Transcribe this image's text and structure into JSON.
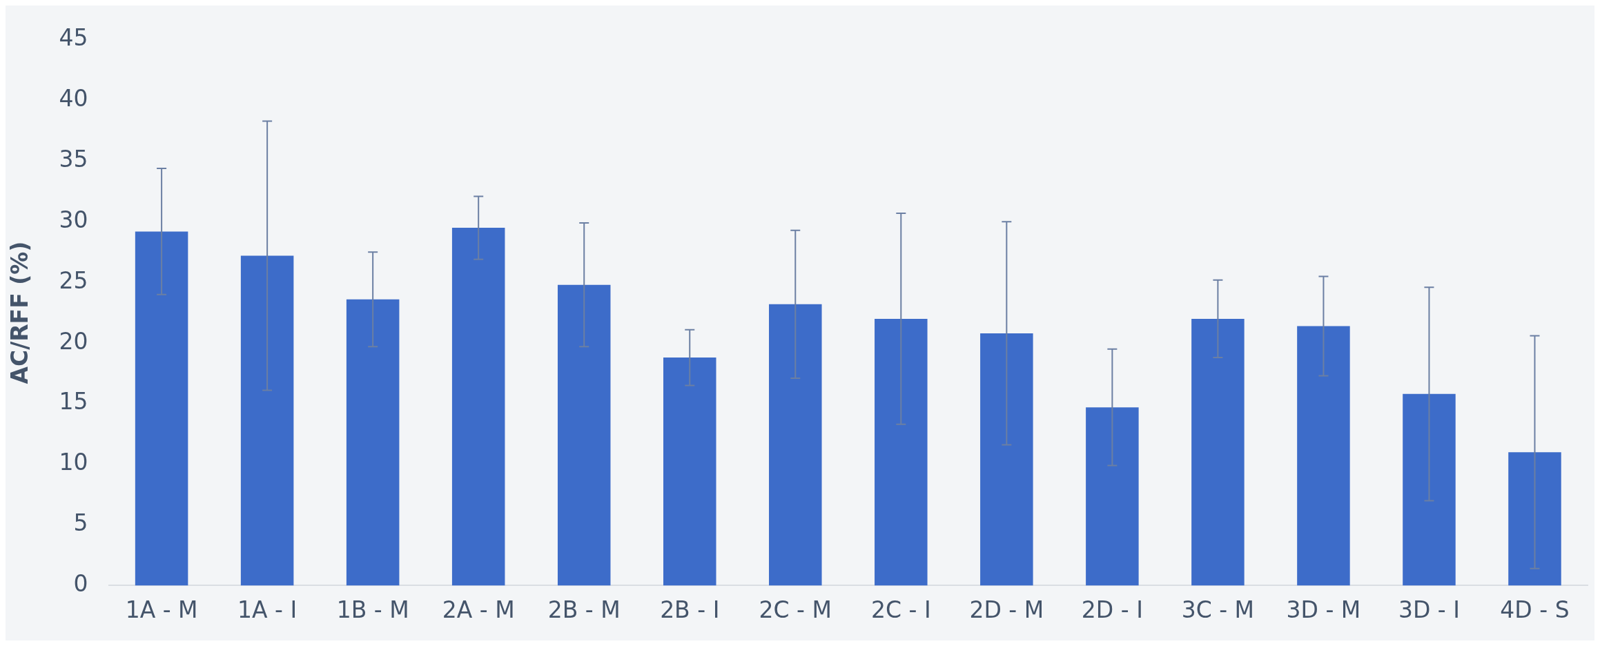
{
  "chart_data": {
    "type": "bar",
    "ylabel": "AC/RFF (%)",
    "categories": [
      "1A - M",
      "1A - I",
      "1B - M",
      "2A - M",
      "2B - M",
      "2B - I",
      "2C - M",
      "2C - I",
      "2D - M",
      "2D - I",
      "3C - M",
      "3D - M",
      "3D - I",
      "4D - S"
    ],
    "values": [
      29.2,
      27.2,
      23.6,
      29.5,
      24.8,
      18.8,
      23.2,
      22.0,
      20.8,
      14.7,
      22.0,
      21.4,
      15.8,
      11.0
    ],
    "errors": [
      5.2,
      11.1,
      3.9,
      2.6,
      5.1,
      2.3,
      6.1,
      8.7,
      9.2,
      4.8,
      3.2,
      4.1,
      8.8,
      9.6
    ],
    "color": "#3d6cc9",
    "ylim": [
      0,
      45
    ],
    "yticks": [
      0,
      5,
      10,
      15,
      20,
      25,
      30,
      35,
      40,
      45
    ],
    "grid": false
  }
}
